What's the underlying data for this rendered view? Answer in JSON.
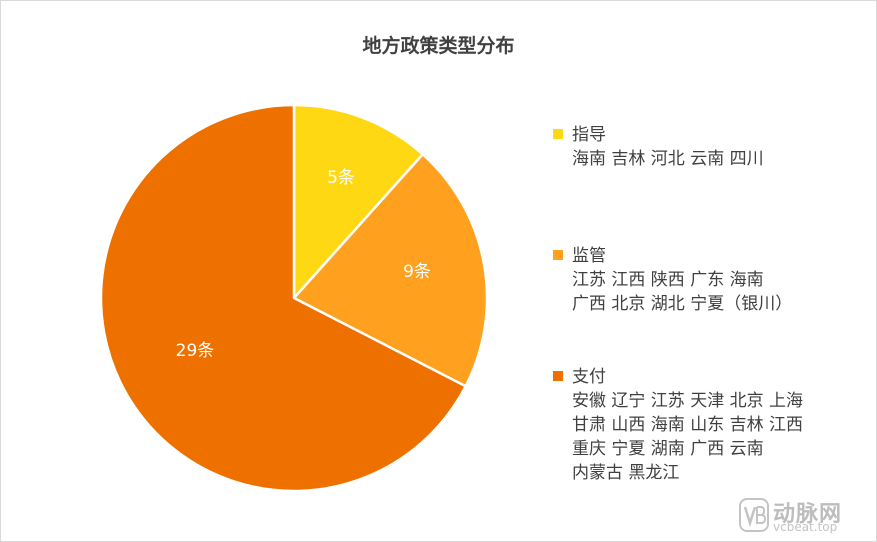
{
  "colors": {
    "guide": "#FFD814",
    "supervise": "#FFA01E",
    "pay": "#EE7100",
    "watermark": "#BDBDBD"
  },
  "chart_data": {
    "type": "pie",
    "title": "地方政策类型分布",
    "legend_position": "right",
    "slices": [
      {
        "name": "指导",
        "value": 5,
        "label": "5条",
        "color": "#FFD814",
        "regions": [
          "海南 吉林 河北 云南 四川"
        ]
      },
      {
        "name": "监管",
        "value": 9,
        "label": "9条",
        "color": "#FFA01E",
        "regions": [
          "江苏 江西 陕西 广东 海南",
          "广西 北京 湖北 宁夏（银川）"
        ]
      },
      {
        "name": "支付",
        "value": 29,
        "label": "29条",
        "color": "#EE7100",
        "regions": [
          "安徽 辽宁 江苏 天津 北京 上海",
          "甘肃 山西 海南 山东 吉林 江西",
          "重庆 宁夏 湖南 广西 云南",
          "内蒙古 黑龙江"
        ]
      }
    ]
  },
  "watermark": {
    "logo": "vb-logo-icon",
    "name": "动脉网",
    "url": "vcbeat.top"
  }
}
